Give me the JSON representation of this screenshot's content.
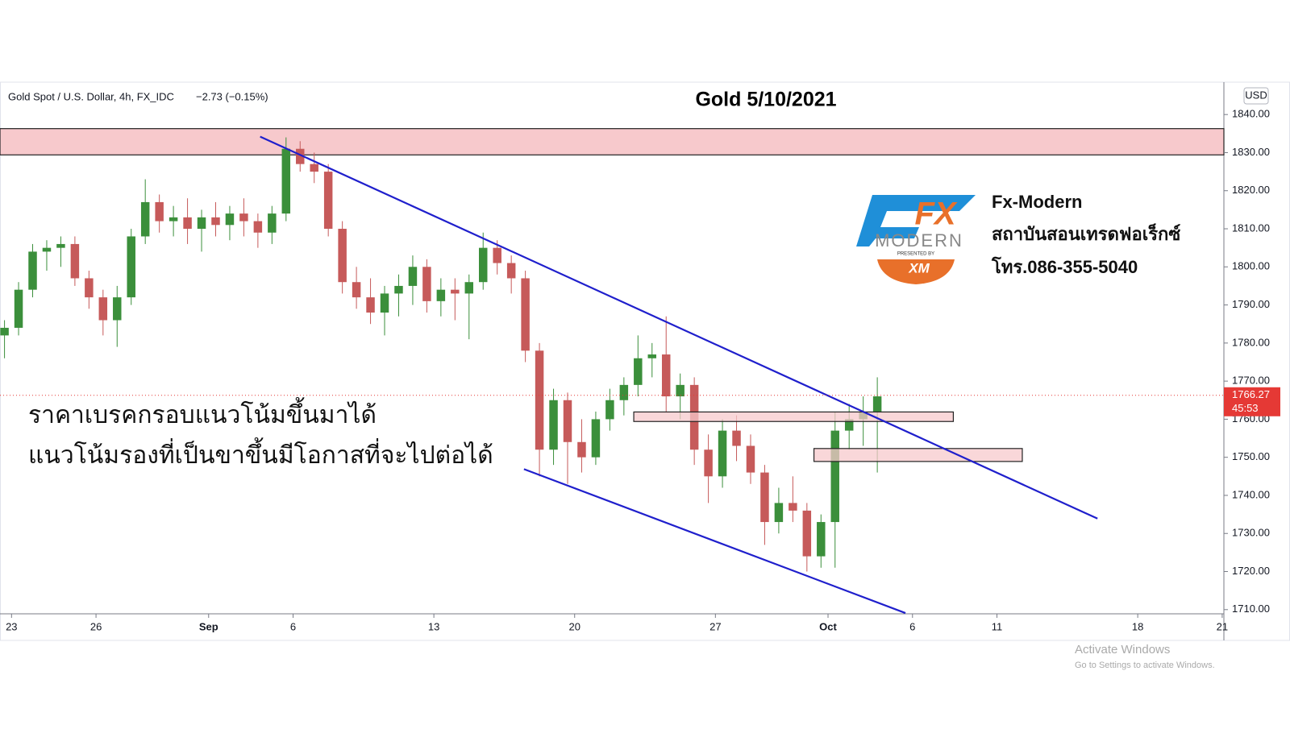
{
  "chart_data": {
    "type": "candlestick",
    "header": "Gold Spot / U.S. Dollar, 4h, FX_IDC",
    "change": "−2.73 (−0.15%)",
    "title": "Gold 5/10/2021",
    "axis_unit": "USD",
    "up_color": "#3b8f3b",
    "down_color": "#c65a5a",
    "x": [
      -0.25,
      0.25,
      0.75,
      1.25,
      1.75,
      2.25,
      2.75,
      3.25,
      3.75,
      4.25,
      4.75,
      5.25,
      5.75,
      6.25,
      6.75,
      7.25,
      7.75,
      8.25,
      8.75,
      9.25,
      9.75,
      10.25,
      10.75,
      11.25,
      11.75,
      12.25,
      12.75,
      13.25,
      13.75,
      14.25,
      14.75,
      15.25,
      15.75,
      16.25,
      16.75,
      17.25,
      17.75,
      18.25,
      18.75,
      19.25,
      19.75,
      20.25,
      20.75,
      21.25,
      21.75,
      22.25,
      22.75,
      23.25,
      23.75,
      24.25,
      24.75,
      25.25,
      25.75,
      26.25,
      26.75,
      27.25,
      27.75,
      28.25,
      28.75,
      29.25,
      29.75,
      30.25,
      30.75
    ],
    "open": [
      1782,
      1784,
      1794,
      1804,
      1805,
      1806,
      1797,
      1792,
      1786,
      1792,
      1808,
      1817,
      1812,
      1813,
      1810,
      1813,
      1811,
      1814,
      1812,
      1809,
      1814,
      1831,
      1827,
      1825,
      1810,
      1796,
      1792,
      1788,
      1793,
      1795,
      1800,
      1791,
      1794,
      1793,
      1796,
      1805,
      1801,
      1797,
      1778,
      1752,
      1765,
      1754,
      1750,
      1760,
      1765,
      1769,
      1776,
      1777,
      1766,
      1769,
      1752,
      1745,
      1757,
      1753,
      1746,
      1733,
      1738,
      1736,
      1724,
      1733,
      1757,
      1760,
      1762
    ],
    "high": [
      1786,
      1796,
      1806,
      1807,
      1808,
      1808,
      1799,
      1794,
      1795,
      1810,
      1823,
      1819,
      1816,
      1818,
      1815,
      1817,
      1816,
      1818,
      1814,
      1816,
      1834,
      1833,
      1830,
      1827,
      1812,
      1800,
      1797,
      1795,
      1798,
      1803,
      1802,
      1797,
      1797,
      1798,
      1809,
      1807,
      1803,
      1799,
      1780,
      1768,
      1767,
      1760,
      1762,
      1768,
      1771,
      1782,
      1780,
      1787,
      1772,
      1771,
      1756,
      1760,
      1761,
      1756,
      1748,
      1742,
      1745,
      1738,
      1735,
      1762,
      1764,
      1766,
      1771
    ],
    "low": [
      1776,
      1782,
      1792,
      1799,
      1800,
      1795,
      1789,
      1782,
      1779,
      1790,
      1806,
      1809,
      1808,
      1806,
      1804,
      1808,
      1807,
      1808,
      1805,
      1806,
      1812,
      1825,
      1822,
      1808,
      1793,
      1789,
      1785,
      1782,
      1787,
      1790,
      1788,
      1787,
      1786,
      1781,
      1794,
      1798,
      1793,
      1775,
      1745,
      1748,
      1743,
      1746,
      1748,
      1757,
      1761,
      1766,
      1771,
      1762,
      1760,
      1748,
      1738,
      1742,
      1749,
      1743,
      1727,
      1730,
      1733,
      1720,
      1721,
      1721,
      1752,
      1753,
      1746
    ],
    "close": [
      1784,
      1794,
      1804,
      1805,
      1806,
      1797,
      1792,
      1786,
      1792,
      1808,
      1817,
      1812,
      1813,
      1810,
      1813,
      1811,
      1814,
      1812,
      1809,
      1814,
      1831,
      1827,
      1825,
      1810,
      1796,
      1792,
      1788,
      1793,
      1795,
      1800,
      1791,
      1794,
      1793,
      1796,
      1805,
      1801,
      1797,
      1778,
      1752,
      1765,
      1754,
      1750,
      1760,
      1765,
      1769,
      1776,
      1777,
      1766,
      1769,
      1752,
      1745,
      1757,
      1753,
      1746,
      1733,
      1738,
      1736,
      1724,
      1733,
      1757,
      1760,
      1762,
      1766
    ],
    "xlim": [
      -0.41,
      43.06
    ],
    "xticks": [
      {
        "value": 0,
        "label": "23"
      },
      {
        "value": 3,
        "label": "26"
      },
      {
        "value": 7,
        "label": "Sep"
      },
      {
        "value": 10,
        "label": "6"
      },
      {
        "value": 15,
        "label": "13"
      },
      {
        "value": 20,
        "label": "20"
      },
      {
        "value": 25,
        "label": "27"
      },
      {
        "value": 29,
        "label": "Oct"
      },
      {
        "value": 32,
        "label": "6"
      },
      {
        "value": 35,
        "label": "11"
      },
      {
        "value": 40,
        "label": "18"
      },
      {
        "value": 43,
        "label": "21"
      }
    ],
    "ylim": [
      1708.9,
      1848.5
    ],
    "yticks": [
      {
        "value": 1710,
        "label": "1710.00"
      },
      {
        "value": 1720,
        "label": "1720.00"
      },
      {
        "value": 1730,
        "label": "1730.00"
      },
      {
        "value": 1740,
        "label": "1740.00"
      },
      {
        "value": 1750,
        "label": "1750.00"
      },
      {
        "value": 1760,
        "label": "1760.00"
      },
      {
        "value": 1770,
        "label": "1770.00"
      },
      {
        "value": 1780,
        "label": "1780.00"
      },
      {
        "value": 1790,
        "label": "1790.00"
      },
      {
        "value": 1800,
        "label": "1800.00"
      },
      {
        "value": 1810,
        "label": "1810.00"
      },
      {
        "value": 1820,
        "label": "1820.00"
      },
      {
        "value": 1830,
        "label": "1830.00"
      },
      {
        "value": 1840,
        "label": "1840.00"
      }
    ],
    "last_price": 1766.27,
    "last_price_color": "#e53935",
    "countdown": "45:53",
    "zone_color": "#f7c9cc",
    "resistance_zone": [
      1829.4,
      1836.3
    ],
    "zones": [
      {
        "x": [
          22.1,
          33.45
        ],
        "y": [
          1759.4,
          1761.9
        ]
      },
      {
        "x": [
          28.5,
          35.9
        ],
        "y": [
          1748.9,
          1752.3
        ]
      }
    ],
    "trendline_color": "#1f1fcc",
    "trendlines": [
      {
        "x": [
          8.83,
          38.57
        ],
        "y": [
          1834.2,
          1733.9
        ]
      },
      {
        "x": [
          18.2,
          31.75
        ],
        "y": [
          1746.9,
          1709.1
        ]
      }
    ],
    "annotations": [
      "ราคาเบรคกรอบแนวโน้มขึ้นมาได้",
      "แนวโน้มรองที่เป็นขาขึ้นมีโอกาสที่จะไปต่อได้"
    ]
  },
  "brand": {
    "logo": "FX",
    "logo_sub": "MODERN",
    "presented": "PRESENTED BY",
    "broker": "XM",
    "name": "Fx-Modern",
    "tagline": "สถาบันสอนเทรดฟอเร็กซ์",
    "phone": "โทร.086-355-5040"
  },
  "os_notice": {
    "title": "Activate Windows",
    "subtitle": "Go to Settings to activate Windows."
  }
}
